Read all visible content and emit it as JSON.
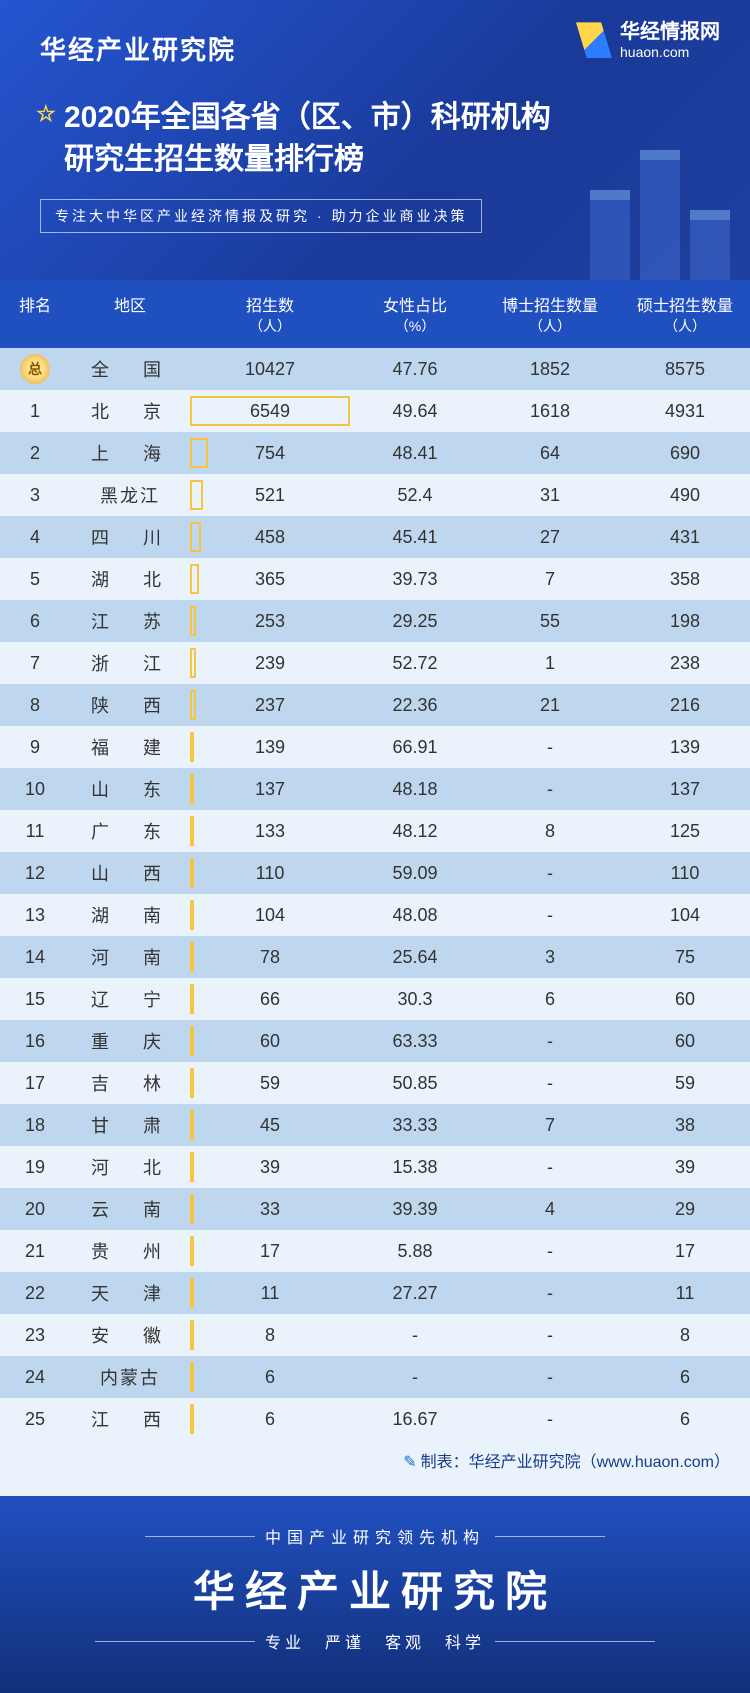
{
  "brand": "华经产业研究院",
  "logo": {
    "name": "华经情报网",
    "domain": "huaon.com"
  },
  "title_line1": "2020年全国各省（区、市）科研机构",
  "title_line2": "研究生招生数量排行榜",
  "tagline": "专注大中华区产业经济情报及研究 · 助力企业商业决策",
  "columns": {
    "rank": "排名",
    "region": "地区",
    "enroll": "招生数",
    "enroll_unit": "（人）",
    "female": "女性占比",
    "female_unit": "（%）",
    "phd": "博士招生数量",
    "phd_unit": "（人）",
    "ms": "硕士招生数量",
    "ms_unit": "（人）"
  },
  "max_enroll": 6549,
  "total_row": {
    "rank_label": "总",
    "region": "全　国",
    "enroll": "10427",
    "female": "47.76",
    "phd": "1852",
    "ms": "8575"
  },
  "rows": [
    {
      "rank": "1",
      "region": "北　京",
      "tight": false,
      "enroll": 6549,
      "female": "49.64",
      "phd": "1618",
      "ms": "4931"
    },
    {
      "rank": "2",
      "region": "上　海",
      "tight": false,
      "enroll": 754,
      "female": "48.41",
      "phd": "64",
      "ms": "690"
    },
    {
      "rank": "3",
      "region": "黑龙江",
      "tight": true,
      "enroll": 521,
      "female": "52.4",
      "phd": "31",
      "ms": "490"
    },
    {
      "rank": "4",
      "region": "四　川",
      "tight": false,
      "enroll": 458,
      "female": "45.41",
      "phd": "27",
      "ms": "431"
    },
    {
      "rank": "5",
      "region": "湖　北",
      "tight": false,
      "enroll": 365,
      "female": "39.73",
      "phd": "7",
      "ms": "358"
    },
    {
      "rank": "6",
      "region": "江　苏",
      "tight": false,
      "enroll": 253,
      "female": "29.25",
      "phd": "55",
      "ms": "198"
    },
    {
      "rank": "7",
      "region": "浙　江",
      "tight": false,
      "enroll": 239,
      "female": "52.72",
      "phd": "1",
      "ms": "238"
    },
    {
      "rank": "8",
      "region": "陕　西",
      "tight": false,
      "enroll": 237,
      "female": "22.36",
      "phd": "21",
      "ms": "216"
    },
    {
      "rank": "9",
      "region": "福　建",
      "tight": false,
      "enroll": 139,
      "female": "66.91",
      "phd": "-",
      "ms": "139"
    },
    {
      "rank": "10",
      "region": "山　东",
      "tight": false,
      "enroll": 137,
      "female": "48.18",
      "phd": "-",
      "ms": "137"
    },
    {
      "rank": "11",
      "region": "广　东",
      "tight": false,
      "enroll": 133,
      "female": "48.12",
      "phd": "8",
      "ms": "125"
    },
    {
      "rank": "12",
      "region": "山　西",
      "tight": false,
      "enroll": 110,
      "female": "59.09",
      "phd": "-",
      "ms": "110"
    },
    {
      "rank": "13",
      "region": "湖　南",
      "tight": false,
      "enroll": 104,
      "female": "48.08",
      "phd": "-",
      "ms": "104"
    },
    {
      "rank": "14",
      "region": "河　南",
      "tight": false,
      "enroll": 78,
      "female": "25.64",
      "phd": "3",
      "ms": "75"
    },
    {
      "rank": "15",
      "region": "辽　宁",
      "tight": false,
      "enroll": 66,
      "female": "30.3",
      "phd": "6",
      "ms": "60"
    },
    {
      "rank": "16",
      "region": "重　庆",
      "tight": false,
      "enroll": 60,
      "female": "63.33",
      "phd": "-",
      "ms": "60"
    },
    {
      "rank": "17",
      "region": "吉　林",
      "tight": false,
      "enroll": 59,
      "female": "50.85",
      "phd": "-",
      "ms": "59"
    },
    {
      "rank": "18",
      "region": "甘　肃",
      "tight": false,
      "enroll": 45,
      "female": "33.33",
      "phd": "7",
      "ms": "38"
    },
    {
      "rank": "19",
      "region": "河　北",
      "tight": false,
      "enroll": 39,
      "female": "15.38",
      "phd": "-",
      "ms": "39"
    },
    {
      "rank": "20",
      "region": "云　南",
      "tight": false,
      "enroll": 33,
      "female": "39.39",
      "phd": "4",
      "ms": "29"
    },
    {
      "rank": "21",
      "region": "贵　州",
      "tight": false,
      "enroll": 17,
      "female": "5.88",
      "phd": "-",
      "ms": "17"
    },
    {
      "rank": "22",
      "region": "天　津",
      "tight": false,
      "enroll": 11,
      "female": "27.27",
      "phd": "-",
      "ms": "11"
    },
    {
      "rank": "23",
      "region": "安　徽",
      "tight": false,
      "enroll": 8,
      "female": "-",
      "phd": "-",
      "ms": "8"
    },
    {
      "rank": "24",
      "region": "内蒙古",
      "tight": true,
      "enroll": 6,
      "female": "-",
      "phd": "-",
      "ms": "6"
    },
    {
      "rank": "25",
      "region": "江　西",
      "tight": false,
      "enroll": 6,
      "female": "16.67",
      "phd": "-",
      "ms": "6"
    }
  ],
  "credit": "制表：华经产业研究院（www.huaon.com）",
  "footer": {
    "sup": "中国产业研究领先机构",
    "big": "华经产业研究院",
    "values": "专业　严谨　客观　科学"
  },
  "colors": {
    "header_bg": "#2050c0",
    "row_alt": "#bed7ef",
    "row_plain": "#eaf2fb",
    "bar_border": "#f5c542",
    "badge_gold": "#ffe08a"
  }
}
